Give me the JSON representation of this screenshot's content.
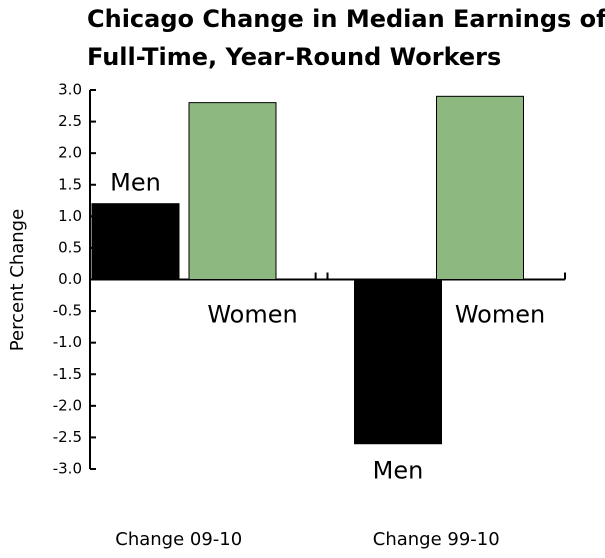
{
  "chart_data": {
    "type": "bar",
    "title": [
      "Chicago Change in Median Earnings of",
      "Full-Time, Year-Round Workers"
    ],
    "y_label": "Percent Change",
    "categories": [
      "Change 09-10",
      "Change 99-10"
    ],
    "series": [
      {
        "name": "Men",
        "color": "#000000",
        "values": [
          1.2,
          -2.6
        ]
      },
      {
        "name": "Women",
        "color": "#8db981",
        "values": [
          2.8,
          2.9
        ]
      }
    ],
    "ylim": [
      -3,
      3
    ],
    "yticks": [
      {
        "value": 3,
        "label": "3.0"
      },
      2.5,
      {
        "value": 2,
        "label": "2.0"
      },
      1.5,
      {
        "value": 1,
        "label": "1.0"
      },
      0.5,
      {
        "value": 0,
        "label": "0.0"
      },
      -0.5,
      {
        "value": -1,
        "label": "-1.0"
      },
      -1.5,
      {
        "value": -2,
        "label": "-2.0"
      },
      -2.5,
      {
        "value": -3,
        "label": "-3.0"
      }
    ]
  }
}
